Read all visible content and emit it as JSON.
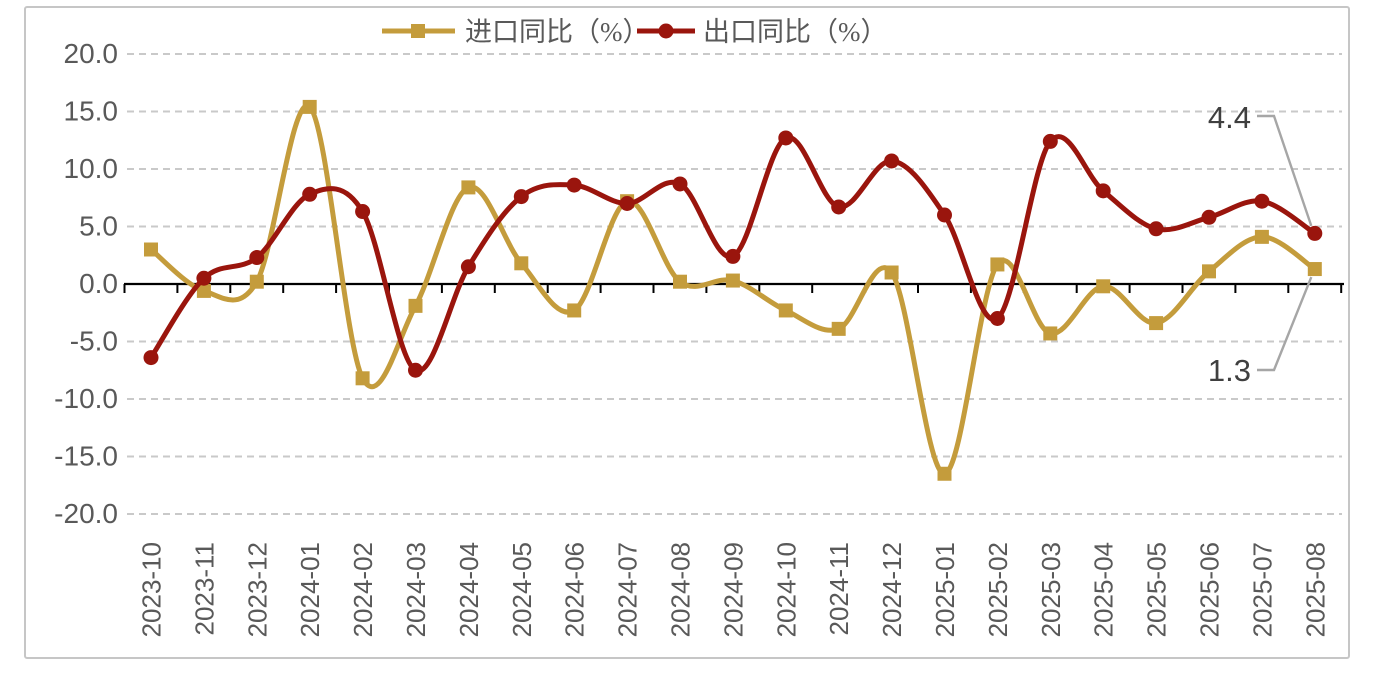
{
  "frame": {
    "border_color": "#C6C6C6",
    "background": "#FFFFFF"
  },
  "chart_data": {
    "type": "line",
    "title": "",
    "categories": [
      "2023-10",
      "2023-11",
      "2023-12",
      "2024-01",
      "2024-02",
      "2024-03",
      "2024-04",
      "2024-05",
      "2024-06",
      "2024-07",
      "2024-08",
      "2024-09",
      "2024-10",
      "2024-11",
      "2024-12",
      "2025-01",
      "2025-02",
      "2025-03",
      "2025-04",
      "2025-05",
      "2025-06",
      "2025-07",
      "2025-08"
    ],
    "series": [
      {
        "name": "进口同比（%）",
        "color": "#C49C3C",
        "marker": "square",
        "line_style": "smooth",
        "values": [
          3.0,
          -0.6,
          0.2,
          15.4,
          -8.2,
          -1.9,
          8.4,
          1.8,
          -2.3,
          7.2,
          0.2,
          0.3,
          -2.3,
          -3.9,
          1.0,
          -16.5,
          1.7,
          -4.3,
          -0.2,
          -3.4,
          1.1,
          4.1,
          1.3
        ]
      },
      {
        "name": "出口同比（%）",
        "color": "#9A150D",
        "marker": "circle",
        "line_style": "smooth",
        "values": [
          -6.4,
          0.5,
          2.3,
          7.8,
          6.3,
          -7.5,
          1.5,
          7.6,
          8.6,
          7.0,
          8.7,
          2.4,
          12.7,
          6.7,
          10.7,
          6.0,
          -3.0,
          12.4,
          8.1,
          4.8,
          5.8,
          7.2,
          4.4
        ]
      }
    ],
    "ylim": [
      -20,
      20
    ],
    "ytick_values": [
      20,
      15,
      10,
      5,
      0,
      -5,
      -10,
      -15,
      -20
    ],
    "ytick_labels": [
      "20.0",
      "15.0",
      "10.0",
      "5.0",
      "0.0",
      "-5.0",
      "-10.0",
      "-15.0",
      "-20.0"
    ],
    "grid": "horizontal-dashed",
    "gridline_color": "#C9C9C9",
    "axis_line_color": "#000000",
    "axis_text_color": "#595959",
    "legend_position": "top-center",
    "annotations": [
      {
        "text": "4.4",
        "series_index": 1,
        "category": "2025-08",
        "placement": "above"
      },
      {
        "text": "1.3",
        "series_index": 0,
        "category": "2025-08",
        "placement": "below"
      }
    ],
    "annotation_text_color": "#3F3F3F",
    "annotation_connector_color": "#A6A6A6"
  }
}
